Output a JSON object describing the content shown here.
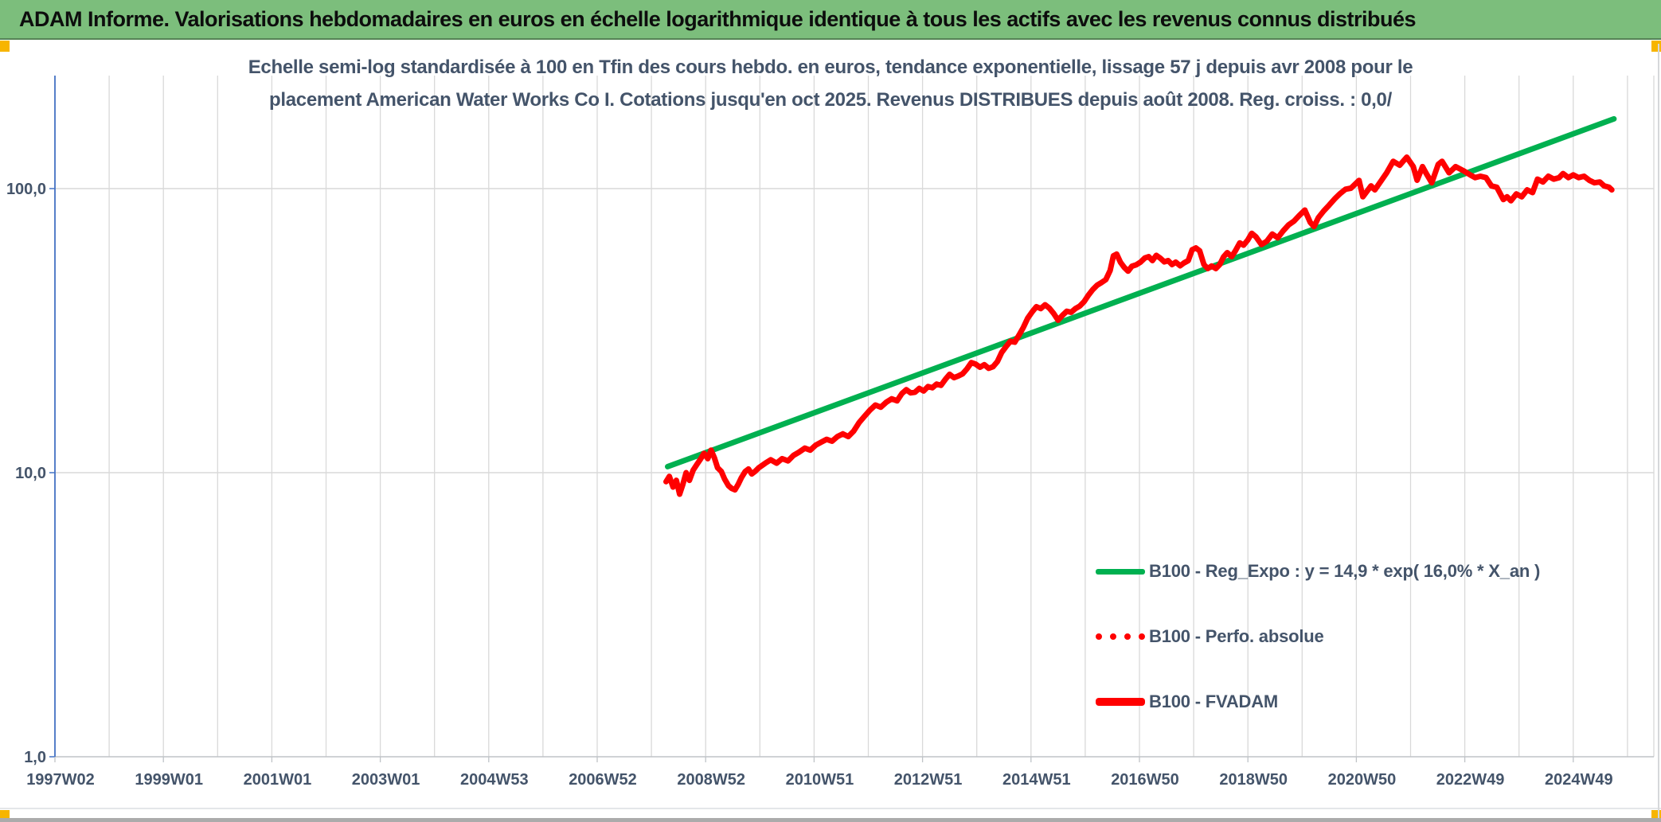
{
  "header": {
    "title": "ADAM Informe. Valorisations hebdomadaires en euros en échelle logarithmique identique à tous les actifs avec les revenus connus distribués"
  },
  "chart": {
    "subtitle_line1": "Echelle semi-log standardisée à 100 en Tfin des cours hebdo. en euros, tendance exponentielle, lissage 57 j depuis avr 2008 pour le",
    "subtitle_line2": "placement American Water Works Co I. Cotations jusqu'en oct 2025. Revenus DISTRIBUES depuis août 2008. Reg. croiss. : 0,0/",
    "legend": [
      {
        "label": "B100 - Reg_Expo : y = 14,9 * exp( 16,0% * X_an )",
        "marker": "green-solid"
      },
      {
        "label": "B100 - Perfo. absolue",
        "marker": "red-dotted"
      },
      {
        "label": "B100 - FVADAM",
        "marker": "red-solid"
      }
    ],
    "colors": {
      "header_green": "#7cbe7c",
      "trend_green": "#00b050",
      "series_red": "#ff0000",
      "axis_blue": "#4472c4",
      "gridline": "#d9d9d9",
      "axis_gray": "#bfc3c7",
      "text": "#44546a",
      "handle_orange": "#f7b500"
    }
  },
  "chart_data": {
    "type": "line",
    "title": "Echelle semi-log standardisée à 100 en Tfin des cours hebdo. en euros, tendance exponentielle, lissage 57 j depuis avr 2008 pour le placement American Water Works Co I. Cotations jusqu'en oct 2025. Revenus DISTRIBUES depuis août 2008. Reg. croiss. : 0,0/",
    "x_axis": {
      "tick_labels": [
        "1997W02",
        "1999W01",
        "2001W01",
        "2003W01",
        "2004W53",
        "2006W52",
        "2008W52",
        "2010W51",
        "2012W51",
        "2014W51",
        "2016W50",
        "2018W50",
        "2020W50",
        "2022W49",
        "2024W49"
      ],
      "tick_years": [
        1997,
        1999,
        2001,
        2003,
        2005,
        2007,
        2009,
        2011,
        2013,
        2015,
        2017,
        2019,
        2021,
        2023,
        2025
      ],
      "range_years": [
        1997.0,
        2026.5
      ],
      "gridline_interval_years": 1,
      "grid": true
    },
    "y_axis": {
      "scale": "log",
      "tick_labels": [
        "100,0",
        "10,0",
        "1,0"
      ],
      "tick_values": [
        100,
        10,
        1
      ],
      "range": [
        1,
        250
      ],
      "grid": true
    },
    "legend_position": "inside-right-lower",
    "series": [
      {
        "name": "B100 - Reg_Expo : y = 14,9 * exp( 16,0% * X_an )",
        "color": "#00b050",
        "style": "solid",
        "width": 7,
        "points": [
          [
            2008.3,
            10.5
          ],
          [
            2025.75,
            176.0
          ]
        ]
      },
      {
        "name": "B100 - Perfo. absolue",
        "color": "#ff0000",
        "style": "dotted",
        "width": 4,
        "visible_in_plot": false,
        "points": []
      },
      {
        "name": "B100 - FVADAM",
        "color": "#ff0000",
        "style": "solid",
        "width": 7,
        "points": [
          [
            2008.27,
            9.3
          ],
          [
            2008.33,
            9.7
          ],
          [
            2008.4,
            8.9
          ],
          [
            2008.46,
            9.4
          ],
          [
            2008.52,
            8.4
          ],
          [
            2008.58,
            9.1
          ],
          [
            2008.64,
            10.0
          ],
          [
            2008.7,
            9.4
          ],
          [
            2008.77,
            10.2
          ],
          [
            2008.84,
            10.7
          ],
          [
            2008.91,
            11.2
          ],
          [
            2008.97,
            11.7
          ],
          [
            2009.04,
            11.2
          ],
          [
            2009.1,
            12.0
          ],
          [
            2009.16,
            11.3
          ],
          [
            2009.22,
            10.4
          ],
          [
            2009.29,
            10.1
          ],
          [
            2009.35,
            9.5
          ],
          [
            2009.42,
            9.0
          ],
          [
            2009.48,
            8.8
          ],
          [
            2009.54,
            8.7
          ],
          [
            2009.6,
            9.1
          ],
          [
            2009.66,
            9.6
          ],
          [
            2009.73,
            10.1
          ],
          [
            2009.79,
            10.3
          ],
          [
            2009.85,
            9.9
          ],
          [
            2009.91,
            10.1
          ],
          [
            2009.98,
            10.4
          ],
          [
            2010.1,
            10.8
          ],
          [
            2010.2,
            11.1
          ],
          [
            2010.31,
            10.8
          ],
          [
            2010.41,
            11.2
          ],
          [
            2010.52,
            11.0
          ],
          [
            2010.62,
            11.5
          ],
          [
            2010.72,
            11.8
          ],
          [
            2010.83,
            12.2
          ],
          [
            2010.93,
            12.0
          ],
          [
            2011.03,
            12.5
          ],
          [
            2011.13,
            12.8
          ],
          [
            2011.23,
            13.1
          ],
          [
            2011.33,
            12.9
          ],
          [
            2011.43,
            13.4
          ],
          [
            2011.53,
            13.7
          ],
          [
            2011.63,
            13.4
          ],
          [
            2011.73,
            14.0
          ],
          [
            2011.83,
            15.0
          ],
          [
            2011.93,
            15.8
          ],
          [
            2012.03,
            16.6
          ],
          [
            2012.13,
            17.3
          ],
          [
            2012.23,
            17.0
          ],
          [
            2012.33,
            17.7
          ],
          [
            2012.43,
            18.2
          ],
          [
            2012.53,
            17.9
          ],
          [
            2012.62,
            19.0
          ],
          [
            2012.7,
            19.6
          ],
          [
            2012.78,
            19.1
          ],
          [
            2012.86,
            19.2
          ],
          [
            2012.94,
            19.8
          ],
          [
            2013.02,
            19.4
          ],
          [
            2013.1,
            20.1
          ],
          [
            2013.18,
            19.9
          ],
          [
            2013.26,
            20.5
          ],
          [
            2013.34,
            20.3
          ],
          [
            2013.42,
            21.3
          ],
          [
            2013.5,
            22.2
          ],
          [
            2013.58,
            21.6
          ],
          [
            2013.66,
            21.9
          ],
          [
            2013.74,
            22.3
          ],
          [
            2013.82,
            23.2
          ],
          [
            2013.9,
            24.4
          ],
          [
            2013.98,
            24.1
          ],
          [
            2014.06,
            23.5
          ],
          [
            2014.14,
            24.0
          ],
          [
            2014.22,
            23.3
          ],
          [
            2014.3,
            23.6
          ],
          [
            2014.38,
            24.6
          ],
          [
            2014.46,
            26.5
          ],
          [
            2014.54,
            27.8
          ],
          [
            2014.62,
            29.0
          ],
          [
            2014.7,
            28.8
          ],
          [
            2014.78,
            30.5
          ],
          [
            2014.86,
            32.5
          ],
          [
            2014.94,
            35.0
          ],
          [
            2015.02,
            36.8
          ],
          [
            2015.1,
            38.4
          ],
          [
            2015.18,
            37.8
          ],
          [
            2015.26,
            39.0
          ],
          [
            2015.34,
            37.9
          ],
          [
            2015.42,
            36.3
          ],
          [
            2015.5,
            34.4
          ],
          [
            2015.58,
            35.8
          ],
          [
            2015.66,
            37.0
          ],
          [
            2015.74,
            36.7
          ],
          [
            2015.82,
            37.8
          ],
          [
            2015.9,
            38.6
          ],
          [
            2015.98,
            40.0
          ],
          [
            2016.06,
            42.2
          ],
          [
            2016.14,
            44.1
          ],
          [
            2016.22,
            45.7
          ],
          [
            2016.3,
            46.7
          ],
          [
            2016.38,
            47.8
          ],
          [
            2016.46,
            51.5
          ],
          [
            2016.52,
            58.0
          ],
          [
            2016.58,
            58.8
          ],
          [
            2016.65,
            55.0
          ],
          [
            2016.72,
            52.8
          ],
          [
            2016.79,
            51.2
          ],
          [
            2016.86,
            53.3
          ],
          [
            2016.94,
            53.9
          ],
          [
            2017.02,
            55.1
          ],
          [
            2017.1,
            57.0
          ],
          [
            2017.17,
            57.6
          ],
          [
            2017.24,
            55.8
          ],
          [
            2017.31,
            58.2
          ],
          [
            2017.38,
            57.0
          ],
          [
            2017.46,
            55.2
          ],
          [
            2017.53,
            55.8
          ],
          [
            2017.6,
            54.0
          ],
          [
            2017.67,
            55.1
          ],
          [
            2017.75,
            53.5
          ],
          [
            2017.82,
            54.7
          ],
          [
            2017.9,
            55.8
          ],
          [
            2017.97,
            60.9
          ],
          [
            2018.04,
            61.8
          ],
          [
            2018.11,
            60.4
          ],
          [
            2018.19,
            54.0
          ],
          [
            2018.26,
            52.3
          ],
          [
            2018.33,
            53.4
          ],
          [
            2018.41,
            52.3
          ],
          [
            2018.48,
            54.0
          ],
          [
            2018.55,
            57.5
          ],
          [
            2018.62,
            59.5
          ],
          [
            2018.7,
            57.6
          ],
          [
            2018.77,
            60.4
          ],
          [
            2018.85,
            64.4
          ],
          [
            2018.92,
            63.2
          ],
          [
            2019.0,
            66.0
          ],
          [
            2019.07,
            69.6
          ],
          [
            2019.15,
            67.6
          ],
          [
            2019.25,
            63.5
          ],
          [
            2019.35,
            65.3
          ],
          [
            2019.45,
            69.2
          ],
          [
            2019.55,
            67.1
          ],
          [
            2019.65,
            71.0
          ],
          [
            2019.75,
            74.5
          ],
          [
            2019.85,
            76.8
          ],
          [
            2019.95,
            80.5
          ],
          [
            2020.05,
            84.0
          ],
          [
            2020.15,
            76.0
          ],
          [
            2020.22,
            73.5
          ],
          [
            2020.3,
            79.0
          ],
          [
            2020.4,
            83.5
          ],
          [
            2020.5,
            87.5
          ],
          [
            2020.6,
            92.0
          ],
          [
            2020.7,
            96.0
          ],
          [
            2020.8,
            99.5
          ],
          [
            2020.9,
            100.3
          ],
          [
            2021.05,
            106.9
          ],
          [
            2021.12,
            93.6
          ],
          [
            2021.27,
            102.2
          ],
          [
            2021.34,
            99.0
          ],
          [
            2021.45,
            106.0
          ],
          [
            2021.56,
            113.7
          ],
          [
            2021.68,
            124.8
          ],
          [
            2021.8,
            120.9
          ],
          [
            2021.93,
            129.0
          ],
          [
            2022.05,
            119.5
          ],
          [
            2022.12,
            107.0
          ],
          [
            2022.22,
            119.5
          ],
          [
            2022.29,
            113.0
          ],
          [
            2022.39,
            104.8
          ],
          [
            2022.51,
            121.7
          ],
          [
            2022.58,
            124.8
          ],
          [
            2022.71,
            113.7
          ],
          [
            2022.83,
            119.5
          ],
          [
            2022.98,
            115.5
          ],
          [
            2023.1,
            111.7
          ],
          [
            2023.19,
            109.3
          ],
          [
            2023.29,
            110.5
          ],
          [
            2023.39,
            109.3
          ],
          [
            2023.49,
            102.2
          ],
          [
            2023.59,
            101.1
          ],
          [
            2023.71,
            91.5
          ],
          [
            2023.78,
            93.6
          ],
          [
            2023.85,
            90.6
          ],
          [
            2023.95,
            95.8
          ],
          [
            2024.05,
            93.6
          ],
          [
            2024.15,
            99.0
          ],
          [
            2024.25,
            96.8
          ],
          [
            2024.34,
            108.0
          ],
          [
            2024.44,
            105.5
          ],
          [
            2024.54,
            110.5
          ],
          [
            2024.64,
            108.0
          ],
          [
            2024.74,
            109.3
          ],
          [
            2024.81,
            113.0
          ],
          [
            2024.91,
            109.3
          ],
          [
            2025.0,
            111.7
          ],
          [
            2025.1,
            109.3
          ],
          [
            2025.2,
            110.5
          ],
          [
            2025.3,
            106.9
          ],
          [
            2025.39,
            104.8
          ],
          [
            2025.49,
            105.5
          ],
          [
            2025.57,
            102.2
          ],
          [
            2025.66,
            101.1
          ],
          [
            2025.71,
            99.0
          ]
        ]
      }
    ]
  }
}
